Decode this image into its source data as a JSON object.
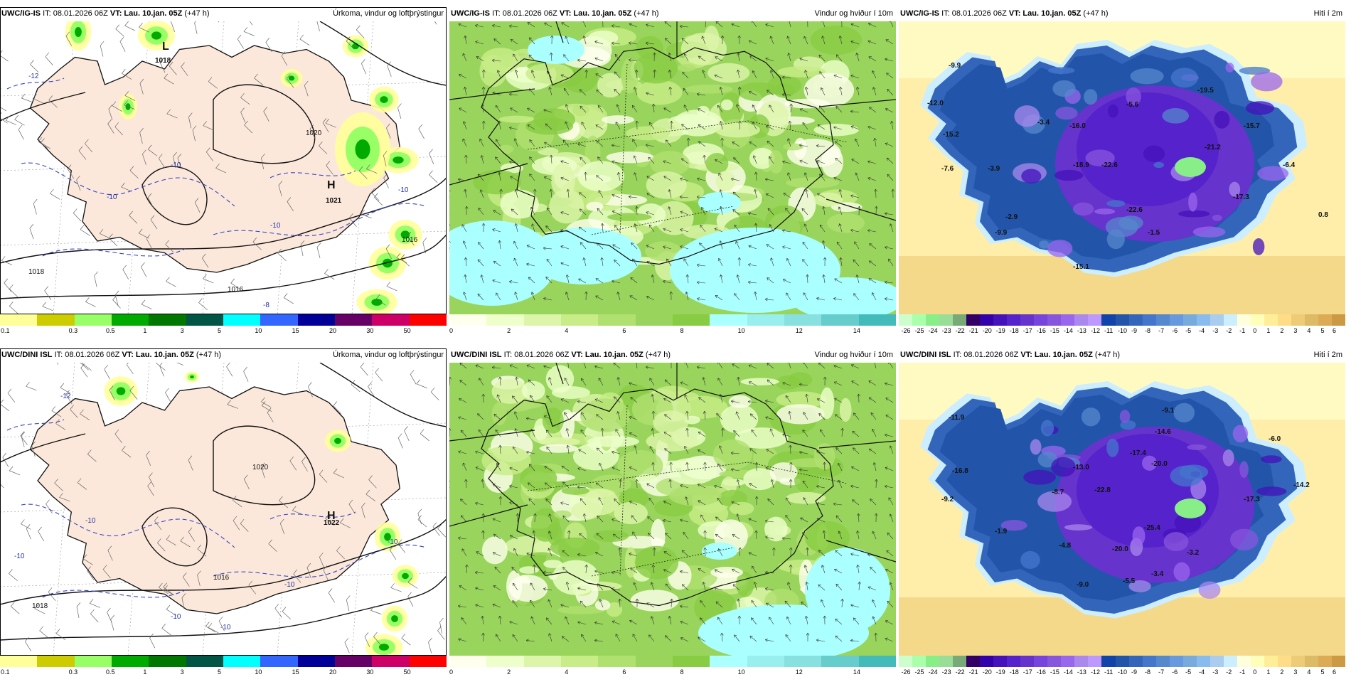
{
  "panels": [
    {
      "model": "UWC/IG-IS",
      "it": "IT: 08.01.2026 06Z",
      "vt": "VT: Lau. 10.jan. 05Z",
      "lead": "(+47 h)",
      "title": "Úrkoma, vindur og loftþrýstingur",
      "type": "precip",
      "labels": [
        "L",
        "1018",
        "H",
        "1021",
        "-12",
        "-10",
        "-10",
        "-10",
        "-8",
        "1016",
        "1018",
        "1020",
        "-10",
        "1016"
      ]
    },
    {
      "model": "UWC/IG-IS",
      "it": "IT: 08.01.2026 06Z",
      "vt": "VT: Lau. 10.jan. 05Z",
      "lead": "(+47 h)",
      "title": "Vindur og hviður í 10m",
      "type": "wind"
    },
    {
      "model": "UWC/IG-IS",
      "it": "IT: 08.01.2026 06Z",
      "vt": "VT: Lau. 10.jan. 05Z",
      "lead": "(+47 h)",
      "title": "Hiti í 2m",
      "type": "temp",
      "labels": [
        "-9.9",
        "-12.0",
        "-15.2",
        "-7.6",
        "-3.9",
        "-2.9",
        "-9.9",
        "-3.4",
        "-16.0",
        "-18.9",
        "-22.6",
        "-19.5",
        "-5.6",
        "-15.7",
        "-21.2",
        "-6.4",
        "-17.3",
        "-22.6",
        "-1.5",
        "-15.1",
        "0.8"
      ]
    },
    {
      "model": "UWC/DINI ISL",
      "it": "IT: 08.01.2026 06Z",
      "vt": "VT: Lau. 10.jan. 05Z",
      "lead": "(+47 h)",
      "title": "Úrkoma, vindur og loftþrýstingur",
      "type": "precip",
      "labels": [
        "-12",
        "H",
        "1022",
        "-10",
        "-10",
        "-10",
        "1020",
        "1016",
        "1018",
        "-10",
        "-10",
        "-10"
      ]
    },
    {
      "model": "UWC/DINI ISL",
      "it": "IT: 08.01.2026 06Z",
      "vt": "VT: Lau. 10.jan. 05Z",
      "lead": "(+47 h)",
      "title": "Vindur og hviður í 10m",
      "type": "wind"
    },
    {
      "model": "UWC/DINI ISL",
      "it": "IT: 08.01.2026 06Z",
      "vt": "VT: Lau. 10.jan. 05Z",
      "lead": "(+47 h)",
      "title": "Hiti í 2m",
      "type": "temp",
      "labels": [
        "-11.9",
        "-9.1",
        "-16.8",
        "-9.2",
        "-8.7",
        "-13.0",
        "-17.4",
        "-14.6",
        "-6.0",
        "-22.8",
        "-20.0",
        "-17.3",
        "-14.2",
        "-25.4",
        "-1.9",
        "-4.8",
        "-20.0",
        "-3.4",
        "-3.2",
        "-9.0",
        "-5.5"
      ]
    }
  ],
  "legends": {
    "precip": {
      "colors": [
        "#ffff99",
        "#cccc00",
        "#99ff66",
        "#00aa00",
        "#007700",
        "#005544",
        "#00ffff",
        "#3366ff",
        "#000099",
        "#660066",
        "#cc0066",
        "#ff0000"
      ],
      "ticks": [
        "0.1",
        "0.3",
        "0.5",
        "1",
        "3",
        "5",
        "10",
        "15",
        "20",
        "30",
        "50"
      ]
    },
    "wind": {
      "colors": [
        "#ffffee",
        "#eeffcc",
        "#ddf5aa",
        "#c8ec88",
        "#b0e070",
        "#99d55c",
        "#88cc44",
        "#aaffff",
        "#99eeee",
        "#88e0e0",
        "#66cccc",
        "#44bbbb"
      ],
      "ticks": [
        "0",
        "2",
        "4",
        "6",
        "8",
        "10",
        "12",
        "14"
      ]
    },
    "temp": {
      "colors": [
        "#ccffcc",
        "#aaffaa",
        "#88ee88",
        "#99dd99",
        "#77aa77",
        "#330066",
        "#3300aa",
        "#4411bb",
        "#5522cc",
        "#6633cc",
        "#7744dd",
        "#8855dd",
        "#9966ee",
        "#aa88ee",
        "#bb99ff",
        "#1144aa",
        "#2255aa",
        "#3366bb",
        "#4477cc",
        "#5588cc",
        "#6699dd",
        "#77aadd",
        "#88bbee",
        "#aaccee",
        "#cceeff",
        "#ffffdd",
        "#ffffbb",
        "#ffee99",
        "#ffdd88",
        "#eecc77",
        "#ddbb66",
        "#ddaa55",
        "#cc9944"
      ],
      "ticks": [
        "-26",
        "-25",
        "-24",
        "-23",
        "-22",
        "-21",
        "-20",
        "-19",
        "-18",
        "-17",
        "-16",
        "-15",
        "-14",
        "-13",
        "-12",
        "-11",
        "-10",
        "-9",
        "-8",
        "-7",
        "-6",
        "-5",
        "-4",
        "-3",
        "-2",
        "-1",
        "0",
        "1",
        "2",
        "3",
        "4",
        "5",
        "6"
      ]
    }
  }
}
